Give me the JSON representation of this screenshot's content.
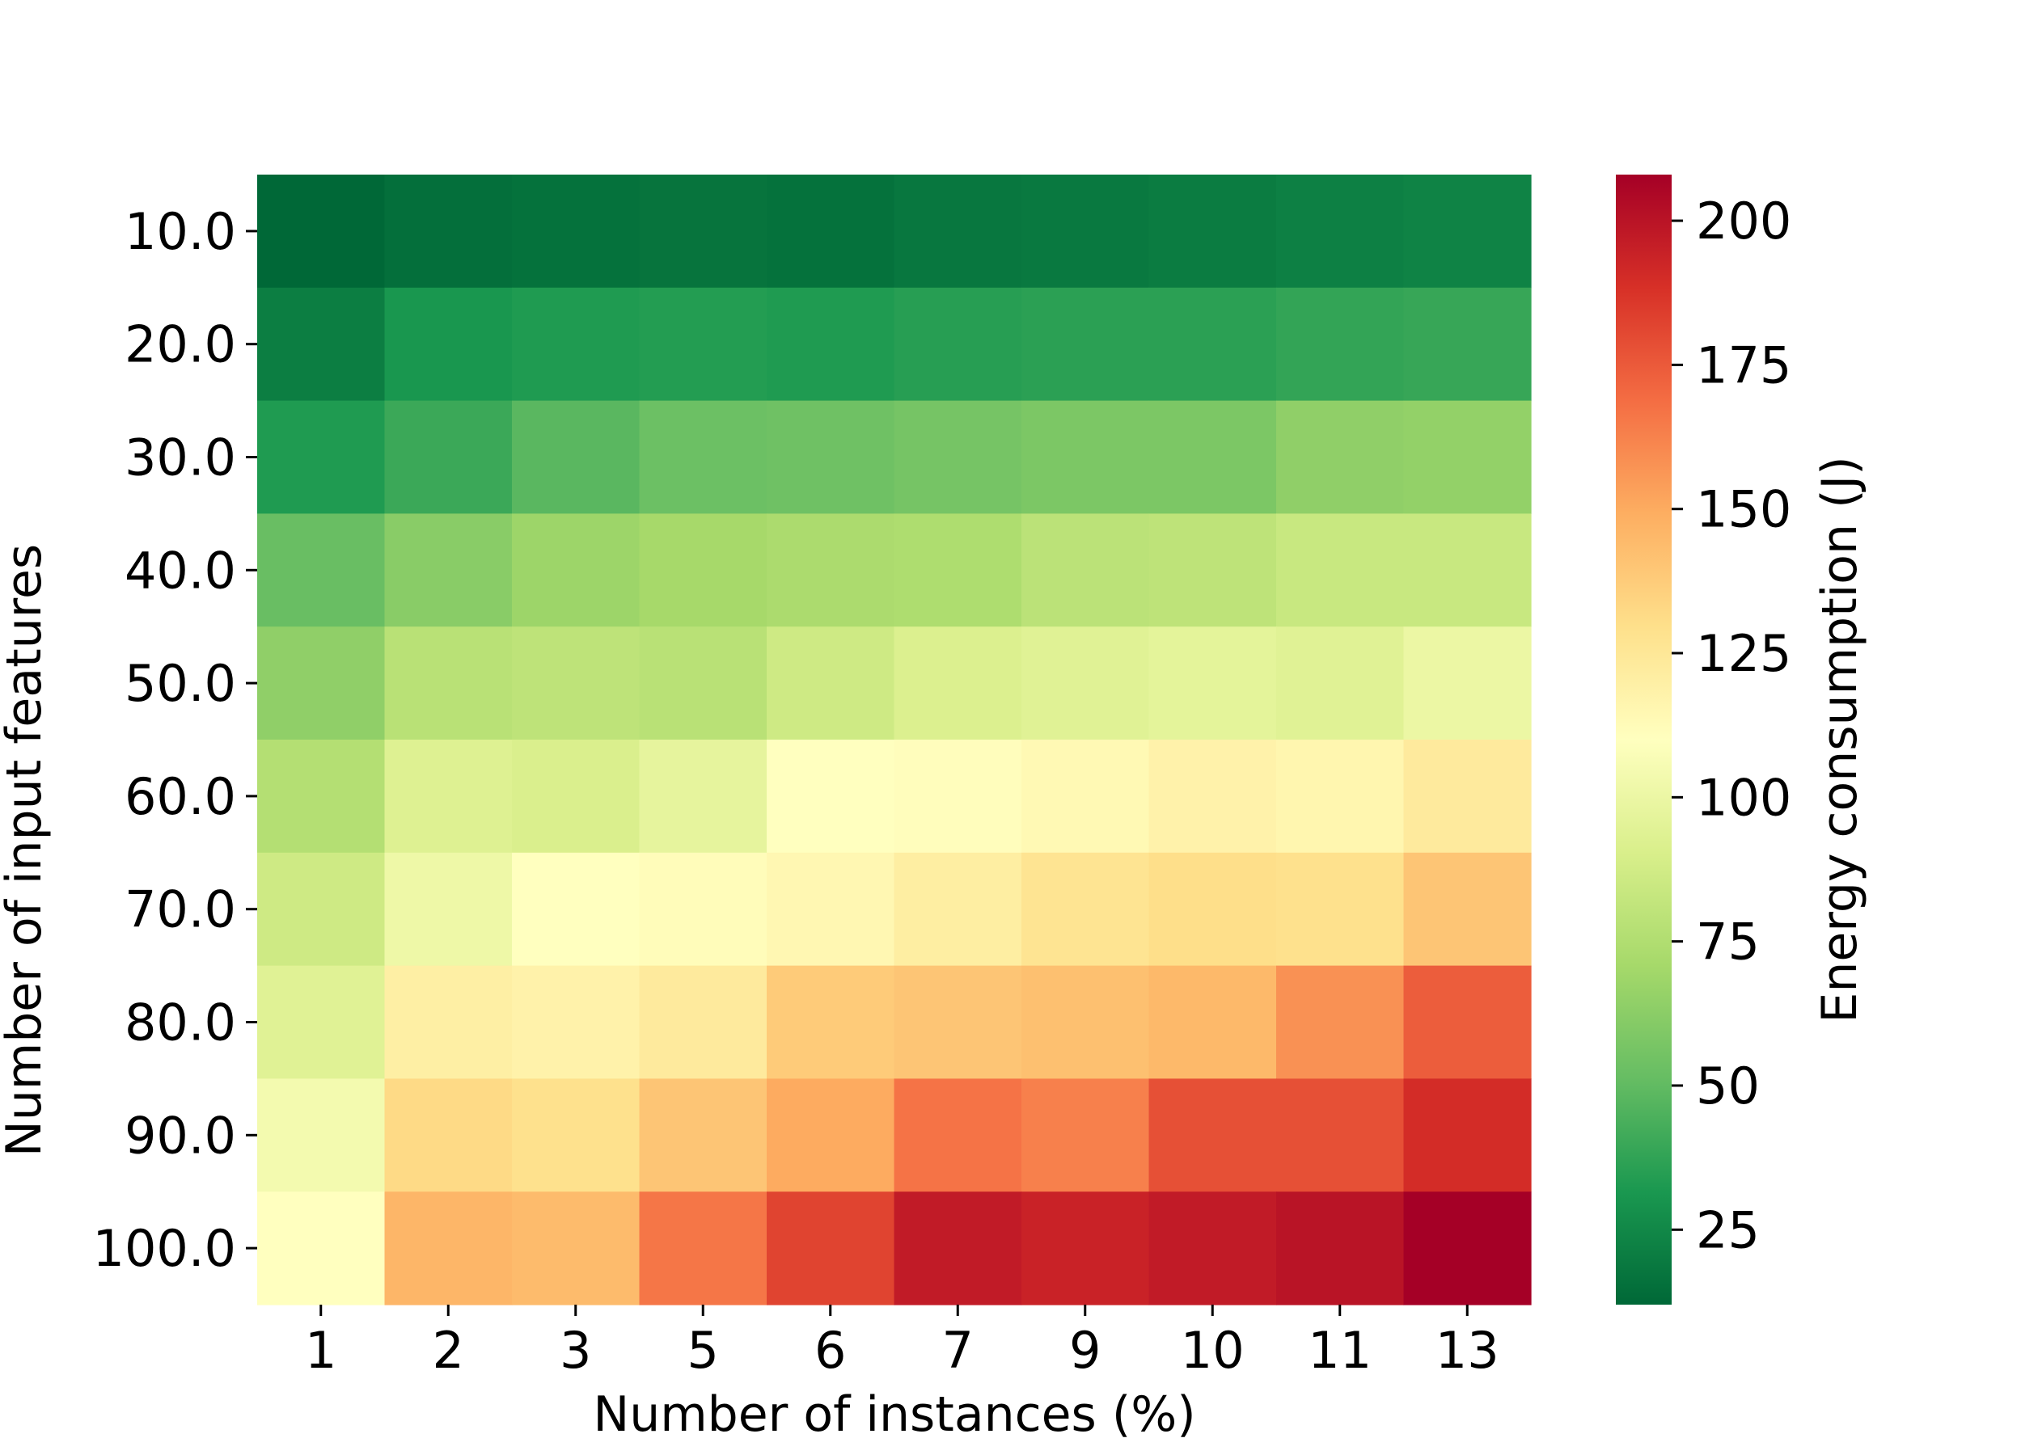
{
  "chart_data": {
    "type": "heatmap",
    "title": "",
    "xlabel": "Number of instances (%)",
    "ylabel": "Number of input features",
    "x_categories": [
      "1",
      "2",
      "3",
      "5",
      "6",
      "7",
      "9",
      "10",
      "11",
      "13"
    ],
    "y_categories": [
      "10.0",
      "20.0",
      "30.0",
      "40.0",
      "50.0",
      "60.0",
      "70.0",
      "80.0",
      "90.0",
      "100.0"
    ],
    "values": [
      [
        12,
        15,
        16,
        17,
        16,
        18,
        19,
        20,
        22,
        23
      ],
      [
        21,
        31,
        33,
        34,
        33,
        35,
        36,
        36,
        38,
        39
      ],
      [
        33,
        40,
        48,
        53,
        54,
        56,
        58,
        58,
        64,
        65
      ],
      [
        52,
        62,
        68,
        71,
        73,
        74,
        79,
        80,
        84,
        84
      ],
      [
        64,
        78,
        80,
        78,
        86,
        92,
        94,
        96,
        94,
        100
      ],
      [
        76,
        93,
        91,
        97,
        110,
        111,
        114,
        118,
        116,
        123
      ],
      [
        86,
        101,
        110,
        112,
        115,
        121,
        127,
        130,
        129,
        140
      ],
      [
        94,
        120,
        118,
        123,
        138,
        140,
        142,
        145,
        158,
        174
      ],
      [
        104,
        132,
        129,
        140,
        150,
        167,
        163,
        178,
        178,
        190
      ],
      [
        110,
        146,
        144,
        166,
        182,
        197,
        194,
        197,
        200,
        208
      ]
    ],
    "colorbar": {
      "label": "Energy consumption (J)",
      "ticks": [
        25,
        50,
        75,
        100,
        125,
        150,
        175,
        200
      ],
      "range": [
        12,
        208
      ],
      "colormap": "RdYlGn_r"
    },
    "colors": [
      "#006837",
      "#1a9850",
      "#66bd63",
      "#a6d96a",
      "#d9ef8b",
      "#ffffbf",
      "#fee08b",
      "#fdae61",
      "#f46d43",
      "#d73027",
      "#a50026"
    ]
  }
}
